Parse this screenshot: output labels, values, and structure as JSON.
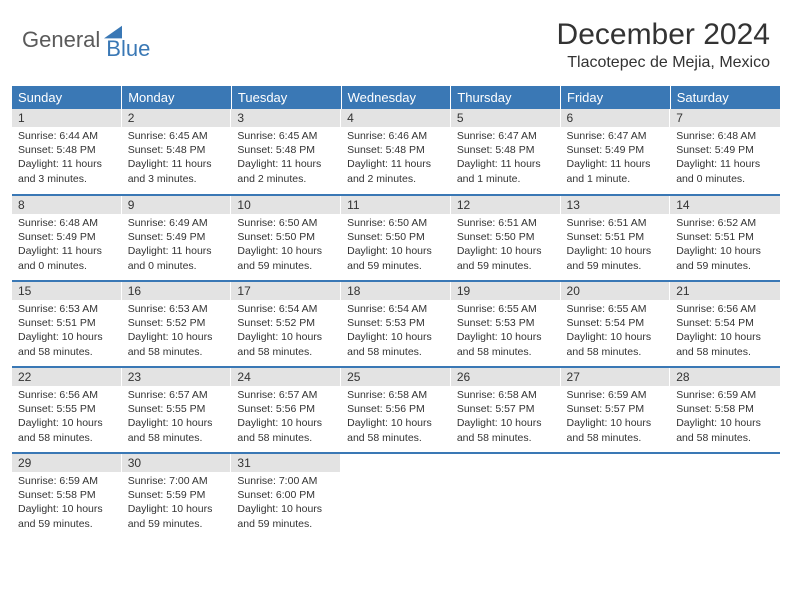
{
  "brand": {
    "part1": "General",
    "part2": "Blue"
  },
  "title": "December 2024",
  "location": "Tlacotepec de Mejia, Mexico",
  "colors": {
    "header_bg": "#3a78b5",
    "header_text": "#ffffff",
    "daynum_bg": "#e3e3e3",
    "text": "#333333",
    "page_bg": "#ffffff",
    "rule": "#3a78b5"
  },
  "weekdays": [
    "Sunday",
    "Monday",
    "Tuesday",
    "Wednesday",
    "Thursday",
    "Friday",
    "Saturday"
  ],
  "weeks": [
    [
      {
        "n": "1",
        "sr": "Sunrise: 6:44 AM",
        "ss": "Sunset: 5:48 PM",
        "dl": "Daylight: 11 hours and 3 minutes."
      },
      {
        "n": "2",
        "sr": "Sunrise: 6:45 AM",
        "ss": "Sunset: 5:48 PM",
        "dl": "Daylight: 11 hours and 3 minutes."
      },
      {
        "n": "3",
        "sr": "Sunrise: 6:45 AM",
        "ss": "Sunset: 5:48 PM",
        "dl": "Daylight: 11 hours and 2 minutes."
      },
      {
        "n": "4",
        "sr": "Sunrise: 6:46 AM",
        "ss": "Sunset: 5:48 PM",
        "dl": "Daylight: 11 hours and 2 minutes."
      },
      {
        "n": "5",
        "sr": "Sunrise: 6:47 AM",
        "ss": "Sunset: 5:48 PM",
        "dl": "Daylight: 11 hours and 1 minute."
      },
      {
        "n": "6",
        "sr": "Sunrise: 6:47 AM",
        "ss": "Sunset: 5:49 PM",
        "dl": "Daylight: 11 hours and 1 minute."
      },
      {
        "n": "7",
        "sr": "Sunrise: 6:48 AM",
        "ss": "Sunset: 5:49 PM",
        "dl": "Daylight: 11 hours and 0 minutes."
      }
    ],
    [
      {
        "n": "8",
        "sr": "Sunrise: 6:48 AM",
        "ss": "Sunset: 5:49 PM",
        "dl": "Daylight: 11 hours and 0 minutes."
      },
      {
        "n": "9",
        "sr": "Sunrise: 6:49 AM",
        "ss": "Sunset: 5:49 PM",
        "dl": "Daylight: 11 hours and 0 minutes."
      },
      {
        "n": "10",
        "sr": "Sunrise: 6:50 AM",
        "ss": "Sunset: 5:50 PM",
        "dl": "Daylight: 10 hours and 59 minutes."
      },
      {
        "n": "11",
        "sr": "Sunrise: 6:50 AM",
        "ss": "Sunset: 5:50 PM",
        "dl": "Daylight: 10 hours and 59 minutes."
      },
      {
        "n": "12",
        "sr": "Sunrise: 6:51 AM",
        "ss": "Sunset: 5:50 PM",
        "dl": "Daylight: 10 hours and 59 minutes."
      },
      {
        "n": "13",
        "sr": "Sunrise: 6:51 AM",
        "ss": "Sunset: 5:51 PM",
        "dl": "Daylight: 10 hours and 59 minutes."
      },
      {
        "n": "14",
        "sr": "Sunrise: 6:52 AM",
        "ss": "Sunset: 5:51 PM",
        "dl": "Daylight: 10 hours and 59 minutes."
      }
    ],
    [
      {
        "n": "15",
        "sr": "Sunrise: 6:53 AM",
        "ss": "Sunset: 5:51 PM",
        "dl": "Daylight: 10 hours and 58 minutes."
      },
      {
        "n": "16",
        "sr": "Sunrise: 6:53 AM",
        "ss": "Sunset: 5:52 PM",
        "dl": "Daylight: 10 hours and 58 minutes."
      },
      {
        "n": "17",
        "sr": "Sunrise: 6:54 AM",
        "ss": "Sunset: 5:52 PM",
        "dl": "Daylight: 10 hours and 58 minutes."
      },
      {
        "n": "18",
        "sr": "Sunrise: 6:54 AM",
        "ss": "Sunset: 5:53 PM",
        "dl": "Daylight: 10 hours and 58 minutes."
      },
      {
        "n": "19",
        "sr": "Sunrise: 6:55 AM",
        "ss": "Sunset: 5:53 PM",
        "dl": "Daylight: 10 hours and 58 minutes."
      },
      {
        "n": "20",
        "sr": "Sunrise: 6:55 AM",
        "ss": "Sunset: 5:54 PM",
        "dl": "Daylight: 10 hours and 58 minutes."
      },
      {
        "n": "21",
        "sr": "Sunrise: 6:56 AM",
        "ss": "Sunset: 5:54 PM",
        "dl": "Daylight: 10 hours and 58 minutes."
      }
    ],
    [
      {
        "n": "22",
        "sr": "Sunrise: 6:56 AM",
        "ss": "Sunset: 5:55 PM",
        "dl": "Daylight: 10 hours and 58 minutes."
      },
      {
        "n": "23",
        "sr": "Sunrise: 6:57 AM",
        "ss": "Sunset: 5:55 PM",
        "dl": "Daylight: 10 hours and 58 minutes."
      },
      {
        "n": "24",
        "sr": "Sunrise: 6:57 AM",
        "ss": "Sunset: 5:56 PM",
        "dl": "Daylight: 10 hours and 58 minutes."
      },
      {
        "n": "25",
        "sr": "Sunrise: 6:58 AM",
        "ss": "Sunset: 5:56 PM",
        "dl": "Daylight: 10 hours and 58 minutes."
      },
      {
        "n": "26",
        "sr": "Sunrise: 6:58 AM",
        "ss": "Sunset: 5:57 PM",
        "dl": "Daylight: 10 hours and 58 minutes."
      },
      {
        "n": "27",
        "sr": "Sunrise: 6:59 AM",
        "ss": "Sunset: 5:57 PM",
        "dl": "Daylight: 10 hours and 58 minutes."
      },
      {
        "n": "28",
        "sr": "Sunrise: 6:59 AM",
        "ss": "Sunset: 5:58 PM",
        "dl": "Daylight: 10 hours and 58 minutes."
      }
    ],
    [
      {
        "n": "29",
        "sr": "Sunrise: 6:59 AM",
        "ss": "Sunset: 5:58 PM",
        "dl": "Daylight: 10 hours and 59 minutes."
      },
      {
        "n": "30",
        "sr": "Sunrise: 7:00 AM",
        "ss": "Sunset: 5:59 PM",
        "dl": "Daylight: 10 hours and 59 minutes."
      },
      {
        "n": "31",
        "sr": "Sunrise: 7:00 AM",
        "ss": "Sunset: 6:00 PM",
        "dl": "Daylight: 10 hours and 59 minutes."
      },
      null,
      null,
      null,
      null
    ]
  ]
}
